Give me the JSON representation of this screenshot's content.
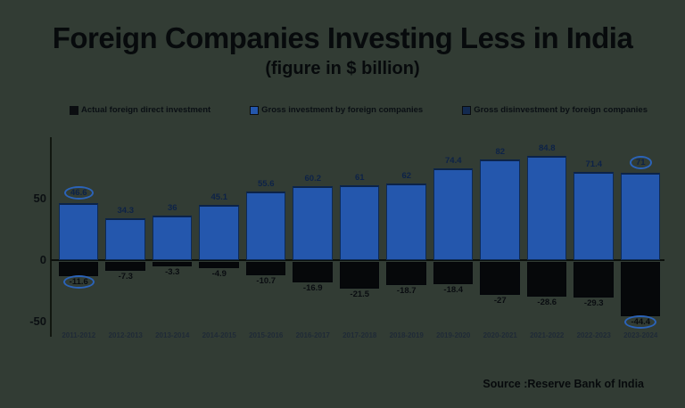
{
  "title": "Foreign Companies Investing Less in India",
  "subtitle": "(figure in $ billion)",
  "legend": [
    {
      "label": "Actual foreign direct investment",
      "color": "#0b0d10"
    },
    {
      "label": "Gross investment by foreign companies",
      "color": "#2457ad"
    },
    {
      "label": "Gross disinvestment by foreign companies",
      "color": "#132a50"
    }
  ],
  "source": "Source :Reserve Bank of India",
  "chart_data": {
    "type": "bar",
    "categories": [
      "2011-2012",
      "2012-2013",
      "2013-2014",
      "2014-2015",
      "2015-2016",
      "2016-2017",
      "2017-2018",
      "2018-2019",
      "2019-2020",
      "2020-2021",
      "2021-2022",
      "2022-2023",
      "2023-2024"
    ],
    "series": [
      {
        "name": "Gross investment by foreign companies",
        "color": "#2457ad",
        "values": [
          46.6,
          34.3,
          36,
          45.1,
          55.6,
          60.2,
          61,
          62,
          74.4,
          82,
          84.8,
          71.4,
          71
        ]
      },
      {
        "name": "Gross disinvestment by foreign companies",
        "color": "#06080a",
        "values": [
          -11.6,
          -7.3,
          -3.3,
          -4.9,
          -10.7,
          -16.9,
          -21.5,
          -18.7,
          -18.4,
          -27,
          -28.6,
          -29.3,
          -44.4
        ]
      }
    ],
    "yticks": [
      "50",
      "0",
      "-50"
    ],
    "ylim": [
      -57,
      100
    ],
    "grid": false,
    "legend_position": "top",
    "highlight_indices": [
      0,
      12
    ]
  }
}
